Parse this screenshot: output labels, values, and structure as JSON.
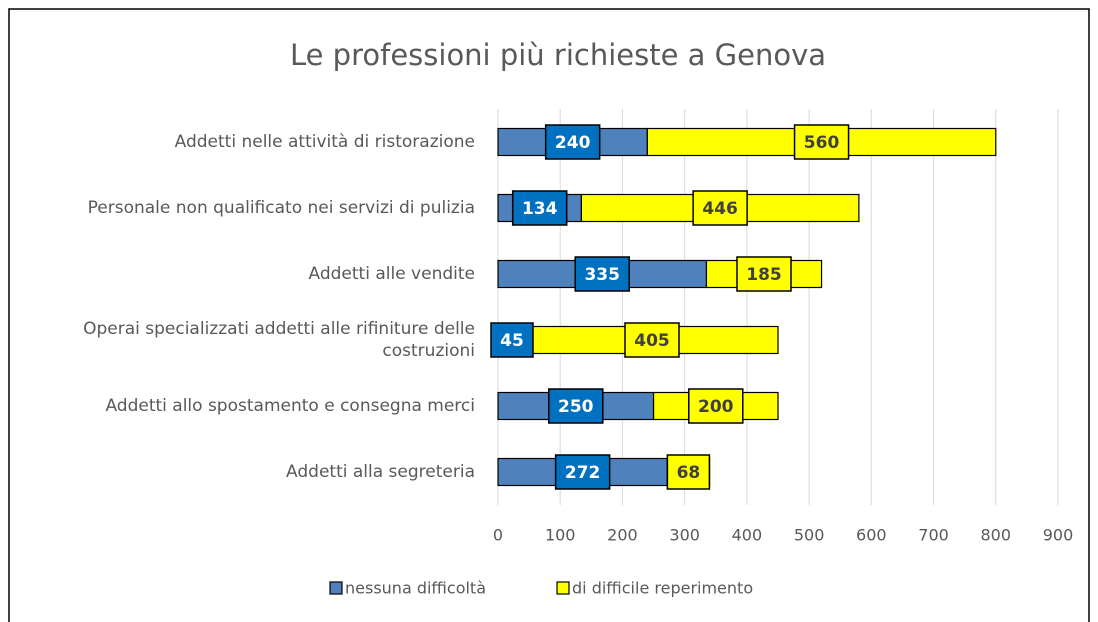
{
  "chart_data": {
    "type": "bar",
    "orientation": "horizontal",
    "stacked": true,
    "title": "Le professioni più richieste a Genova",
    "categories": [
      "Addetti nelle attività di ristorazione",
      "Personale non qualificato nei servizi di pulizia",
      "Addetti alle vendite",
      "Operai specializzati addetti alle rifiniture delle costruzioni",
      "Addetti allo spostamento e consegna merci",
      "Addetti alla segreteria"
    ],
    "series": [
      {
        "name": "nessuna difficoltà",
        "color": "#4f81bd",
        "label_color": "#0070c0",
        "values": [
          240,
          134,
          335,
          45,
          250,
          272
        ]
      },
      {
        "name": "di difficile reperimento",
        "color": "#ffff00",
        "label_color": "#ffff00",
        "values": [
          560,
          446,
          185,
          405,
          200,
          68
        ]
      }
    ],
    "xlim": [
      0,
      900
    ],
    "xticks": [
      0,
      100,
      200,
      300,
      400,
      500,
      600,
      700,
      800,
      900
    ],
    "grid": true,
    "legend": "bottom"
  }
}
